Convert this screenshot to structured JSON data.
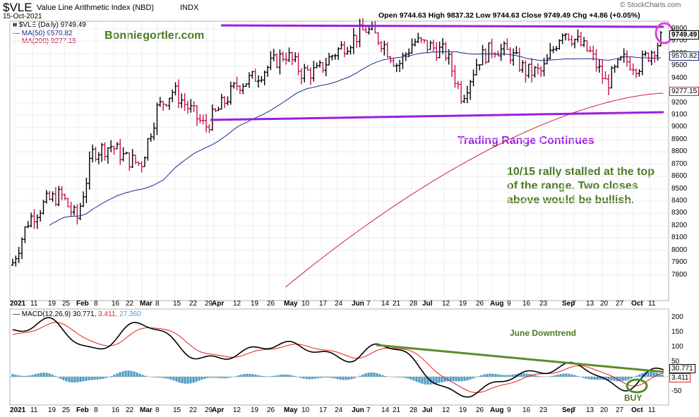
{
  "header": {
    "symbol": "$VLE",
    "name": "Value Line Arithmetic Index (NBD)",
    "exchange": "INDX",
    "date": "15-Oct-2021",
    "ohlc": "Open 9744.63  High 9837.32  Low 9744.63  Close 9749.49  Chg +4.86 (+0.05%)",
    "watermark": "© StockCharts.com"
  },
  "legend": {
    "price": "■ $VLE (Daily) 9749.49",
    "ma50": "— MA(50) 9570.82",
    "ma200": "— MA(200) 9277.15"
  },
  "macd_legend": {
    "label": "— MACD(12,26,9) 30.771,",
    "signal": "3.411,",
    "hist": "27.360"
  },
  "annotations": {
    "site": "Bonniegortler.com",
    "range": "Trading Range Continues",
    "note1": "10/15 rally stalled at the top",
    "note2": "of the range.  Two closes",
    "note3": "above would be bullish.",
    "june": "June Downtrend",
    "buy": "BUY"
  },
  "price_axis": {
    "ticks": [
      "9800",
      "9700",
      "9600",
      "9500",
      "9400",
      "9300",
      "9200",
      "9100",
      "9000",
      "8900",
      "8800",
      "8700",
      "8600",
      "8500",
      "8400",
      "8300",
      "8200",
      "8100",
      "8000",
      "7900",
      "7800"
    ],
    "tag_close": "9749.49",
    "tag_ma50": "9570.82",
    "tag_ma200": "9277.15"
  },
  "macd_axis": {
    "ticks": [
      "200",
      "150",
      "100",
      "50",
      "-50"
    ],
    "tag_macd": "30.771",
    "tag_signal": "3.411"
  },
  "x_axis": {
    "labels": [
      "2021",
      "11",
      "19",
      "25",
      "Feb",
      "8",
      "16",
      "22",
      "Mar",
      "8",
      "15",
      "22",
      "29",
      "Apr",
      "12",
      "19",
      "26",
      "May",
      "10",
      "17",
      "24",
      "Jun",
      "7",
      "14",
      "21",
      "28",
      "Jul",
      "12",
      "19",
      "26",
      "Aug",
      "9",
      "16",
      "23",
      "Sep",
      "7",
      "13",
      "20",
      "27",
      "Oct",
      "11"
    ]
  },
  "colors": {
    "up": "#000000",
    "down": "#c8104f",
    "ma50": "#1a2b8c",
    "ma200": "#d0203a",
    "trendline": "#9b1ee0",
    "annotation_green": "#4a7a22",
    "macd_line": "#000000",
    "signal_line": "#e02020",
    "histogram": "#4a9cc8",
    "june_line": "#5a8c2a",
    "circle": "#e040e0"
  },
  "chart_data": [
    {
      "type": "ohlc",
      "title": "$VLE Value Line Arithmetic Index (NBD) INDX",
      "ylim": [
        7650,
        9900
      ],
      "key_points": [
        {
          "date": "2021-01-04",
          "close": 7900
        },
        {
          "date": "2021-01-11",
          "close": 8250
        },
        {
          "date": "2021-01-19",
          "close": 8400
        },
        {
          "date": "2021-01-25",
          "close": 8450
        },
        {
          "date": "2021-02-01",
          "close": 8250
        },
        {
          "date": "2021-02-08",
          "close": 8800
        },
        {
          "date": "2021-02-16",
          "close": 8850
        },
        {
          "date": "2021-02-22",
          "close": 8750
        },
        {
          "date": "2021-03-01",
          "close": 8700
        },
        {
          "date": "2021-03-08",
          "close": 9150
        },
        {
          "date": "2021-03-15",
          "close": 9300
        },
        {
          "date": "2021-03-22",
          "close": 9150
        },
        {
          "date": "2021-03-29",
          "close": 9000
        },
        {
          "date": "2021-04-12",
          "close": 9350
        },
        {
          "date": "2021-04-19",
          "close": 9400
        },
        {
          "date": "2021-04-26",
          "close": 9500
        },
        {
          "date": "2021-05-03",
          "close": 9600
        },
        {
          "date": "2021-05-10",
          "close": 9450
        },
        {
          "date": "2021-05-17",
          "close": 9450
        },
        {
          "date": "2021-05-24",
          "close": 9600
        },
        {
          "date": "2021-06-07",
          "close": 9800
        },
        {
          "date": "2021-06-14",
          "close": 9700
        },
        {
          "date": "2021-06-21",
          "close": 9500
        },
        {
          "date": "2021-06-28",
          "close": 9700
        },
        {
          "date": "2021-07-06",
          "close": 9650
        },
        {
          "date": "2021-07-12",
          "close": 9600
        },
        {
          "date": "2021-07-19",
          "close": 9250
        },
        {
          "date": "2021-07-26",
          "close": 9550
        },
        {
          "date": "2021-08-02",
          "close": 9650
        },
        {
          "date": "2021-08-09",
          "close": 9600
        },
        {
          "date": "2021-08-16",
          "close": 9450
        },
        {
          "date": "2021-08-23",
          "close": 9450
        },
        {
          "date": "2021-09-01",
          "close": 9800
        },
        {
          "date": "2021-09-07",
          "close": 9700
        },
        {
          "date": "2021-09-13",
          "close": 9600
        },
        {
          "date": "2021-09-20",
          "close": 9350
        },
        {
          "date": "2021-09-27",
          "close": 9550
        },
        {
          "date": "2021-10-04",
          "close": 9500
        },
        {
          "date": "2021-10-11",
          "close": 9650
        },
        {
          "date": "2021-10-15",
          "close": 9749.49
        }
      ],
      "series": [
        {
          "name": "MA(50)",
          "last": 9570.82
        },
        {
          "name": "MA(200)",
          "last": 9277.15
        }
      ],
      "trendlines": [
        {
          "from": [
            "2021-06-07",
            9820
          ],
          "to": [
            "2021-10-15",
            9820
          ]
        },
        {
          "from": [
            "2021-03-29",
            9050
          ],
          "to": [
            "2021-10-15",
            9100
          ]
        }
      ]
    },
    {
      "type": "line",
      "title": "MACD(12,26,9)",
      "ylim": [
        -90,
        240
      ],
      "series": [
        {
          "name": "MACD",
          "last": 30.771,
          "points": [
            [
              "2021-01-19",
              190
            ],
            [
              "2021-02-08",
              90
            ],
            [
              "2021-03-01",
              180
            ],
            [
              "2021-03-29",
              60
            ],
            [
              "2021-05-03",
              110
            ],
            [
              "2021-06-01",
              60
            ],
            [
              "2021-06-14",
              110
            ],
            [
              "2021-07-19",
              -60
            ],
            [
              "2021-08-16",
              10
            ],
            [
              "2021-09-07",
              40
            ],
            [
              "2021-09-27",
              -40
            ],
            [
              "2021-10-15",
              30.771
            ]
          ]
        },
        {
          "name": "Signal",
          "last": 3.411
        },
        {
          "name": "Histogram",
          "last": 27.36
        }
      ],
      "trendlines": [
        {
          "name": "June Downtrend",
          "from": [
            "2021-06-14",
            105
          ],
          "to": [
            "2021-10-15",
            25
          ]
        }
      ]
    }
  ]
}
